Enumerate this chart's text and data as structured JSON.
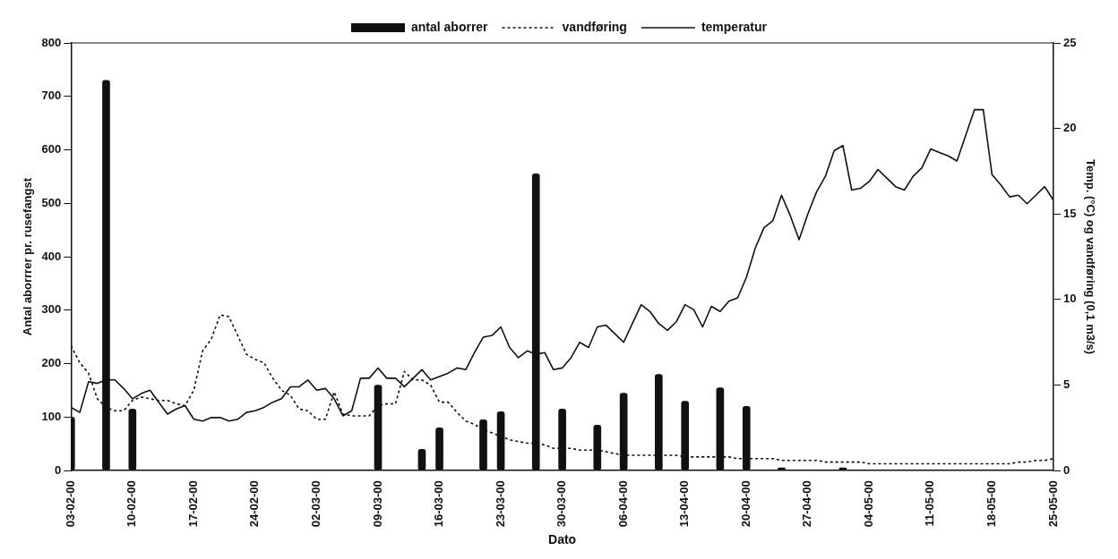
{
  "chart_data": {
    "type": "bar",
    "xlabel": "Dato",
    "ylabel": "Antal aborrrer pr. rusefangst",
    "y2label": "Temp. (°C) og vandføring (0,1 m3/s)",
    "xlim": [
      "2000-02-03",
      "2000-05-25"
    ],
    "xticks": [
      {
        "value": "2000-02-03",
        "label": "03-02-00"
      },
      {
        "value": "2000-02-10",
        "label": "10-02-00"
      },
      {
        "value": "2000-02-17",
        "label": "17-02-00"
      },
      {
        "value": "2000-02-24",
        "label": "24-02-00"
      },
      {
        "value": "2000-03-02",
        "label": "02-03-00"
      },
      {
        "value": "2000-03-09",
        "label": "09-03-00"
      },
      {
        "value": "2000-03-16",
        "label": "16-03-00"
      },
      {
        "value": "2000-03-23",
        "label": "23-03-00"
      },
      {
        "value": "2000-03-30",
        "label": "30-03-00"
      },
      {
        "value": "2000-04-06",
        "label": "06-04-00"
      },
      {
        "value": "2000-04-13",
        "label": "13-04-00"
      },
      {
        "value": "2000-04-20",
        "label": "20-04-00"
      },
      {
        "value": "2000-04-27",
        "label": "27-04-00"
      },
      {
        "value": "2000-05-04",
        "label": "04-05-00"
      },
      {
        "value": "2000-05-11",
        "label": "11-05-00"
      },
      {
        "value": "2000-05-18",
        "label": "18-05-00"
      },
      {
        "value": "2000-05-25",
        "label": "25-05-00"
      }
    ],
    "ylim": [
      0,
      800
    ],
    "yticks": [
      0,
      100,
      200,
      300,
      400,
      500,
      600,
      700,
      800
    ],
    "y2lim": [
      0,
      25
    ],
    "y2ticks": [
      0,
      5,
      10,
      15,
      20,
      25
    ],
    "legend": "top",
    "marker": "none",
    "x": [
      "2000-02-03",
      "2000-02-04",
      "2000-02-05",
      "2000-02-06",
      "2000-02-07",
      "2000-02-08",
      "2000-02-09",
      "2000-02-10",
      "2000-02-11",
      "2000-02-12",
      "2000-02-13",
      "2000-02-14",
      "2000-02-15",
      "2000-02-16",
      "2000-02-17",
      "2000-02-18",
      "2000-02-19",
      "2000-02-20",
      "2000-02-21",
      "2000-02-22",
      "2000-02-23",
      "2000-02-24",
      "2000-02-25",
      "2000-02-26",
      "2000-02-27",
      "2000-02-28",
      "2000-02-29",
      "2000-03-01",
      "2000-03-02",
      "2000-03-03",
      "2000-03-04",
      "2000-03-05",
      "2000-03-06",
      "2000-03-07",
      "2000-03-08",
      "2000-03-09",
      "2000-03-10",
      "2000-03-11",
      "2000-03-12",
      "2000-03-13",
      "2000-03-14",
      "2000-03-15",
      "2000-03-16",
      "2000-03-17",
      "2000-03-18",
      "2000-03-19",
      "2000-03-20",
      "2000-03-21",
      "2000-03-22",
      "2000-03-23",
      "2000-03-24",
      "2000-03-25",
      "2000-03-26",
      "2000-03-27",
      "2000-03-28",
      "2000-03-29",
      "2000-03-30",
      "2000-03-31",
      "2000-04-01",
      "2000-04-02",
      "2000-04-03",
      "2000-04-04",
      "2000-04-05",
      "2000-04-06",
      "2000-04-07",
      "2000-04-08",
      "2000-04-09",
      "2000-04-10",
      "2000-04-11",
      "2000-04-12",
      "2000-04-13",
      "2000-04-14",
      "2000-04-15",
      "2000-04-16",
      "2000-04-17",
      "2000-04-18",
      "2000-04-19",
      "2000-04-20",
      "2000-04-21",
      "2000-04-22",
      "2000-04-23",
      "2000-04-24",
      "2000-04-25",
      "2000-04-26",
      "2000-04-27",
      "2000-04-28",
      "2000-04-29",
      "2000-04-30",
      "2000-05-01",
      "2000-05-02",
      "2000-05-03",
      "2000-05-04",
      "2000-05-05",
      "2000-05-06",
      "2000-05-07",
      "2000-05-08",
      "2000-05-09",
      "2000-05-10",
      "2000-05-11",
      "2000-05-12",
      "2000-05-13",
      "2000-05-14",
      "2000-05-15",
      "2000-05-16",
      "2000-05-17",
      "2000-05-18",
      "2000-05-19",
      "2000-05-20",
      "2000-05-21",
      "2000-05-22",
      "2000-05-23",
      "2000-05-24",
      "2000-05-25"
    ],
    "series": [
      {
        "name": "antal aborrer",
        "color": "#111111",
        "x": [
          "2000-02-03",
          "2000-02-07",
          "2000-02-10",
          "2000-03-09",
          "2000-03-14",
          "2000-03-16",
          "2000-03-21",
          "2000-03-23",
          "2000-03-27",
          "2000-03-30",
          "2000-04-03",
          "2000-04-06",
          "2000-04-10",
          "2000-04-13",
          "2000-04-17",
          "2000-04-20",
          "2000-04-24",
          "2000-05-01"
        ],
        "values": [
          100,
          730,
          115,
          160,
          40,
          80,
          95,
          110,
          555,
          115,
          85,
          145,
          180,
          130,
          155,
          120,
          5,
          5
        ]
      },
      {
        "name": "vandføring",
        "type": "line",
        "axis": "y2",
        "line_style": "dotted",
        "color": "#111111",
        "values": [
          7.3,
          6.3,
          5.7,
          4.2,
          3.7,
          3.5,
          3.5,
          4.1,
          4.3,
          4.2,
          4.1,
          4.1,
          3.9,
          3.8,
          4.7,
          7.0,
          7.7,
          9.1,
          9.0,
          7.9,
          6.8,
          6.5,
          6.3,
          5.4,
          4.7,
          4.4,
          3.6,
          3.5,
          3.0,
          3.0,
          4.6,
          3.3,
          3.2,
          3.2,
          3.2,
          3.8,
          3.9,
          3.9,
          5.8,
          5.3,
          5.3,
          5.0,
          4.0,
          4.0,
          3.4,
          2.9,
          2.7,
          2.4,
          2.2,
          2.0,
          1.8,
          1.7,
          1.6,
          1.6,
          1.5,
          1.3,
          1.3,
          1.3,
          1.2,
          1.2,
          1.2,
          1.1,
          1.0,
          0.9,
          0.9,
          0.9,
          0.9,
          0.9,
          0.9,
          0.9,
          0.8,
          0.8,
          0.8,
          0.8,
          0.8,
          0.8,
          0.7,
          0.7,
          0.7,
          0.7,
          0.7,
          0.6,
          0.6,
          0.6,
          0.6,
          0.6,
          0.5,
          0.5,
          0.5,
          0.5,
          0.5,
          0.4,
          0.4,
          0.4,
          0.4,
          0.4,
          0.4,
          0.4,
          0.4,
          0.4,
          0.4,
          0.4,
          0.4,
          0.4,
          0.4,
          0.4,
          0.4,
          0.4,
          0.5,
          0.5,
          0.6,
          0.6,
          0.7
        ]
      },
      {
        "name": "temperatur",
        "type": "line",
        "axis": "y2",
        "line_style": "solid",
        "color": "#111111",
        "values": [
          3.7,
          3.4,
          5.2,
          5.1,
          5.3,
          5.3,
          4.8,
          4.2,
          4.5,
          4.7,
          4.0,
          3.3,
          3.6,
          3.8,
          3.0,
          2.9,
          3.1,
          3.1,
          2.9,
          3.0,
          3.4,
          3.5,
          3.7,
          4.0,
          4.2,
          4.9,
          4.9,
          5.3,
          4.7,
          4.8,
          4.2,
          3.2,
          3.5,
          5.4,
          5.4,
          6.0,
          5.4,
          5.4,
          4.9,
          5.4,
          5.9,
          5.3,
          5.5,
          5.7,
          6.0,
          5.9,
          6.9,
          7.8,
          7.9,
          8.4,
          7.2,
          6.6,
          7.0,
          6.8,
          6.9,
          5.9,
          6.0,
          6.6,
          7.5,
          7.2,
          8.4,
          8.5,
          8.0,
          7.5,
          8.6,
          9.7,
          9.3,
          8.6,
          8.2,
          8.7,
          9.7,
          9.4,
          8.4,
          9.6,
          9.3,
          9.9,
          10.1,
          11.3,
          13.0,
          14.2,
          14.6,
          16.1,
          14.9,
          13.5,
          15.0,
          16.3,
          17.2,
          18.7,
          19.0,
          16.4,
          16.5,
          16.9,
          17.6,
          17.1,
          16.6,
          16.4,
          17.2,
          17.7,
          18.8,
          18.6,
          18.4,
          18.1,
          19.6,
          21.1,
          21.1,
          17.3,
          16.7,
          16.0,
          16.1,
          15.6,
          16.1,
          16.6,
          15.8
        ]
      }
    ]
  }
}
